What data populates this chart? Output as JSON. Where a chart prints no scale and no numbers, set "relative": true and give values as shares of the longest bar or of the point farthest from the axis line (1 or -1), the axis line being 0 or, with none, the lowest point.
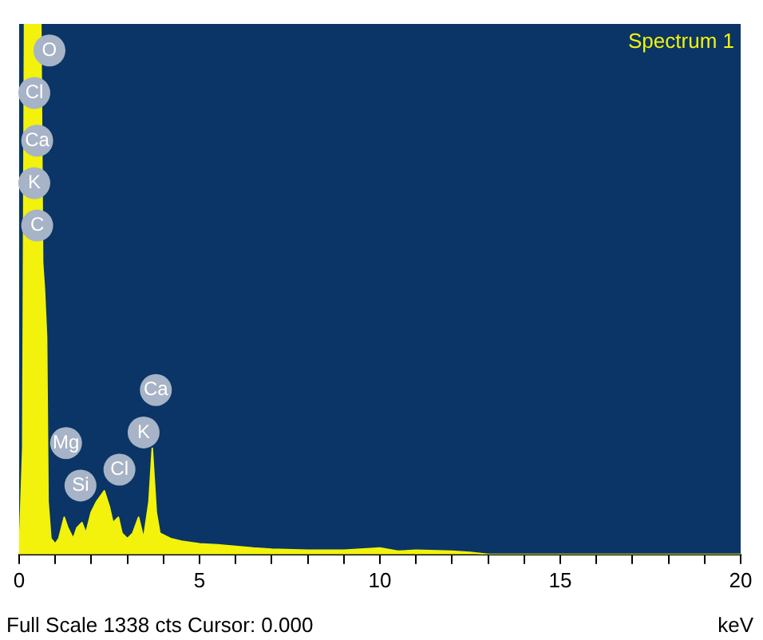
{
  "chart_data": {
    "type": "area",
    "title": "Spectrum 1",
    "xlabel": "keV",
    "relative": true,
    "color": "#f2f20c",
    "tick_labels": "x",
    "grid": false,
    "legend": false,
    "xlim": [
      0,
      20
    ],
    "xticks": [
      0,
      {
        "value": 1,
        "label": null
      },
      {
        "value": 2,
        "label": null
      },
      {
        "value": 3,
        "label": null
      },
      {
        "value": 4,
        "label": null
      },
      5,
      {
        "value": 6,
        "label": null
      },
      {
        "value": 7,
        "label": null
      },
      {
        "value": 8,
        "label": null
      },
      {
        "value": 9,
        "label": null
      },
      10,
      {
        "value": 11,
        "label": null
      },
      {
        "value": 12,
        "label": null
      },
      {
        "value": 13,
        "label": null
      },
      {
        "value": 14,
        "label": null
      },
      15,
      {
        "value": 16,
        "label": null
      },
      {
        "value": 17,
        "label": null
      },
      {
        "value": 18,
        "label": null
      },
      {
        "value": 19,
        "label": null
      },
      20
    ],
    "x": [
      0,
      0.1,
      0.15,
      0.3,
      0.5,
      0.6,
      0.65,
      0.7,
      0.76,
      0.8,
      0.88,
      1.0,
      1.1,
      1.25,
      1.35,
      1.5,
      1.6,
      1.74,
      1.85,
      2.0,
      2.15,
      2.36,
      2.5,
      2.6,
      2.75,
      2.85,
      3.0,
      3.15,
      3.31,
      3.45,
      3.6,
      3.69,
      3.8,
      3.9,
      4.2,
      4.5,
      5,
      5.5,
      6,
      6.5,
      7,
      8,
      9,
      10,
      10.5,
      11,
      12,
      12.5,
      13,
      20
    ],
    "values": [
      0,
      0.2,
      1,
      1,
      1,
      1,
      0.55,
      0.5,
      0.41,
      0.1,
      0.03,
      0.02,
      0.03,
      0.07,
      0.05,
      0.03,
      0.05,
      0.06,
      0.04,
      0.08,
      0.1,
      0.12,
      0.09,
      0.06,
      0.07,
      0.04,
      0.03,
      0.04,
      0.07,
      0.03,
      0.1,
      0.2,
      0.08,
      0.04,
      0.03,
      0.025,
      0.02,
      0.018,
      0.015,
      0.012,
      0.01,
      0.008,
      0.008,
      0.012,
      0.006,
      0.008,
      0.006,
      0.004,
      0,
      0
    ],
    "annotations": [
      {
        "text": "O",
        "x": 0.84,
        "y": 0.95
      },
      {
        "text": "Cl",
        "x": 0.42,
        "y": 0.87
      },
      {
        "text": "Ca",
        "x": 0.5,
        "y": 0.78
      },
      {
        "text": "K",
        "x": 0.42,
        "y": 0.7
      },
      {
        "text": "C",
        "x": 0.5,
        "y": 0.62
      },
      {
        "text": "Mg",
        "x": 1.3,
        "y": 0.21
      },
      {
        "text": "Si",
        "x": 1.7,
        "y": 0.13
      },
      {
        "text": "Cl",
        "x": 2.78,
        "y": 0.16
      },
      {
        "text": "K",
        "x": 3.45,
        "y": 0.23
      },
      {
        "text": "Ca",
        "x": 3.79,
        "y": 0.31
      },
      "Full Scale 1338 cts Cursor: 0.000"
    ]
  }
}
